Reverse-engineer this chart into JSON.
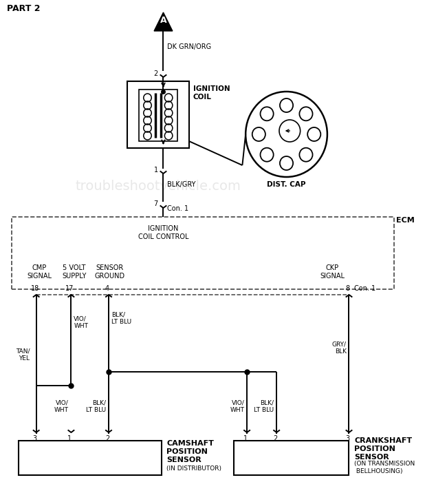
{
  "bg_color": "#ffffff",
  "lc": "#000000",
  "lw": 1.4,
  "title": "PART 2",
  "ecm_label": "ECM",
  "ignition_coil_label": "IGNITION\nCOIL",
  "dist_cap_label": "DIST. CAP",
  "watermark": "troubleshootvehicle.com",
  "connector_a": "A",
  "wire_dk_grn_org": "DK GRN/ORG",
  "wire_blk_gry": "BLK/GRY",
  "wire_tan_yel": "TAN/\nYEL",
  "wire_vio_wht": "VIO/\nWHT",
  "wire_blk_lt_blu": "BLK/\nLT BLU",
  "wire_gry_blk": "GRY/\nBLK",
  "con1_label": "Con. 1",
  "ecm_ignition_control": "IGNITION\nCOIL CONTROL",
  "ecm_cmp": "CMP\nSIGNAL",
  "ecm_5volt": "5 VOLT\nSUPPLY",
  "ecm_sensor_gnd": "SENSOR\nGROUND",
  "ecm_ckp": "CKP\nSIGNAL",
  "cam_sensor_label": "CAMSHAFT\nPOSITION\nSENSOR",
  "cam_sensor_sub": "(IN DISTRIBUTOR)",
  "crank_sensor_label": "CRANKSHAFT\nPOSITION\nSENSOR",
  "crank_sensor_sub": "(ON TRANSMISSION\n BELLHOUSING)",
  "pin_2": "2",
  "pin_1": "1",
  "pin_7": "7",
  "pin_18": "18",
  "pin_17": "17",
  "pin_4": "4",
  "pin_8": "8",
  "pin_cam_3": "3",
  "pin_cam_1": "1",
  "pin_cam_2": "2",
  "pin_crank_1": "1",
  "pin_crank_2": "2",
  "pin_crank_3": "3"
}
